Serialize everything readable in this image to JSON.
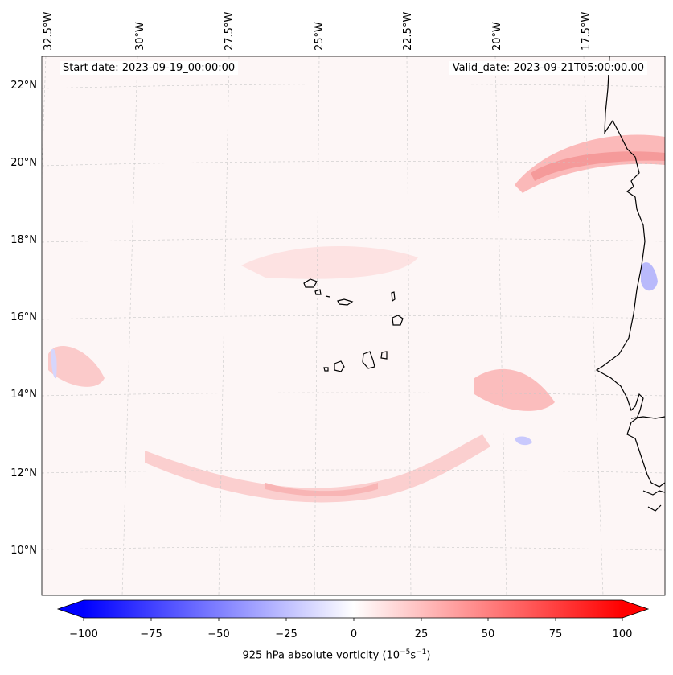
{
  "map": {
    "type": "filled-contour-map",
    "start_label": "Start date: 2023-09-19_00:00:00",
    "valid_label": "Valid_date: 2023-09-21T05:00:00.00",
    "lon_labels": [
      "32.5°W",
      "30°W",
      "27.5°W",
      "25°W",
      "22.5°W",
      "20°W",
      "17.5°W"
    ],
    "lat_labels": [
      "22°N",
      "20°N",
      "18°N",
      "16°N",
      "14°N",
      "12°N",
      "10°N"
    ],
    "features": [
      "coastline-west-africa",
      "cape-verde-islands"
    ]
  },
  "colorbar": {
    "label": "925 hPa absolute vorticity (10",
    "label_exp": "−5",
    "label_mid": "s",
    "label_exp2": "−1",
    "label_end": ")",
    "min": -100,
    "max": 100,
    "ticks": [
      "−100",
      "−75",
      "−50",
      "−25",
      "0",
      "25",
      "50",
      "75",
      "100"
    ],
    "colormap": "bwr",
    "low_color": "#0000ff",
    "mid_color": "#ffffff",
    "high_color": "#ff0000"
  }
}
